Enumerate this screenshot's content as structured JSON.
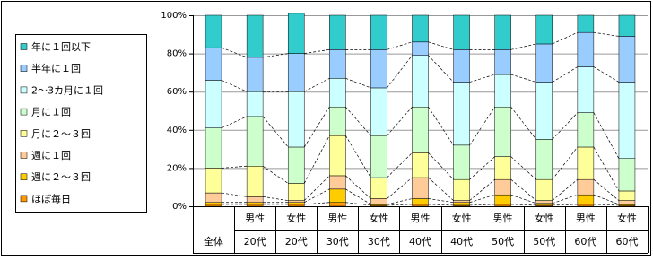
{
  "chart_data": {
    "type": "stacked_bar_100",
    "categories": [
      [
        "全体"
      ],
      [
        "男性",
        "20代"
      ],
      [
        "女性",
        "20代"
      ],
      [
        "男性",
        "30代"
      ],
      [
        "女性",
        "30代"
      ],
      [
        "男性",
        "40代"
      ],
      [
        "女性",
        "40代"
      ],
      [
        "男性",
        "50代"
      ],
      [
        "女性",
        "50代"
      ],
      [
        "男性",
        "60代"
      ],
      [
        "女性",
        "60代"
      ]
    ],
    "series": [
      {
        "name": "ほぼ毎日",
        "color": "#ff9900",
        "values": [
          1,
          1,
          1,
          2,
          0.5,
          1,
          0.5,
          1,
          0.5,
          1,
          0.5
        ]
      },
      {
        "name": "週に２～３回",
        "color": "#ffcc00",
        "values": [
          1,
          1,
          1,
          7,
          0.5,
          3,
          1.5,
          5,
          1,
          5,
          0.5
        ]
      },
      {
        "name": "週に１回",
        "color": "#ffcc99",
        "values": [
          5,
          3,
          1,
          7,
          3,
          11,
          1,
          8,
          1.5,
          8,
          2
        ]
      },
      {
        "name": "月に２～３回",
        "color": "#ffff99",
        "values": [
          13,
          16,
          9,
          21,
          11,
          13,
          11,
          12,
          11,
          17,
          5
        ]
      },
      {
        "name": "月に１回",
        "color": "#ccffcc",
        "values": [
          21,
          26,
          19,
          15,
          22,
          24,
          18,
          26,
          21,
          18,
          17
        ]
      },
      {
        "name": "2～3カ月に１回",
        "color": "#ccffff",
        "values": [
          25,
          13,
          29,
          15,
          25,
          27,
          33,
          17,
          30,
          24,
          40
        ]
      },
      {
        "name": "半年に１回",
        "color": "#99ccff",
        "values": [
          17,
          18,
          20,
          15,
          20,
          7,
          17,
          13,
          20,
          18,
          24
        ]
      },
      {
        "name": "年に１回以下",
        "color": "#33cccc",
        "values": [
          17,
          22,
          21,
          18,
          18,
          14,
          18,
          18,
          15,
          9,
          11
        ]
      }
    ],
    "ylim": [
      0,
      100
    ],
    "yticks": [
      {
        "value": 0,
        "label": "0%"
      },
      {
        "value": 20,
        "label": "20%"
      },
      {
        "value": 40,
        "label": "40%"
      },
      {
        "value": 60,
        "label": "60%"
      },
      {
        "value": 80,
        "label": "80%"
      },
      {
        "value": 100,
        "label": "100%"
      }
    ],
    "grid": true
  }
}
